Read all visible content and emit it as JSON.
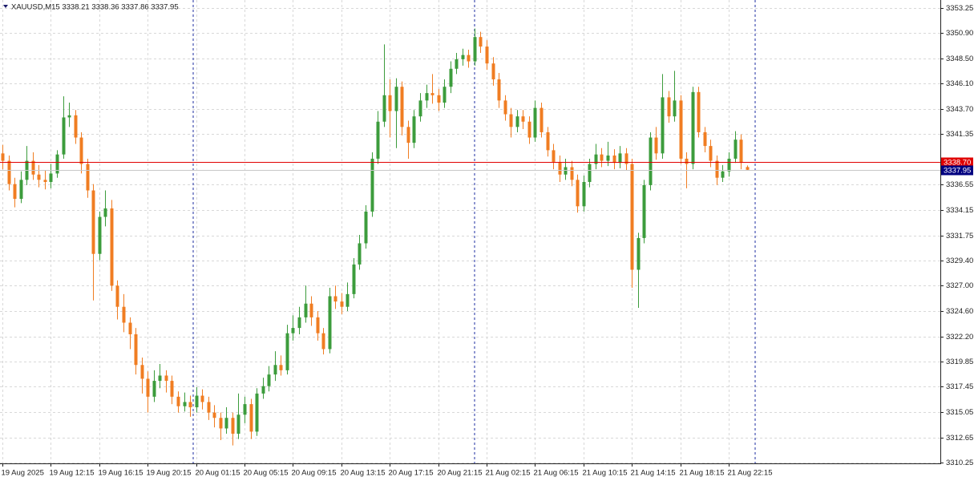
{
  "chart_data": {
    "type": "candlestick",
    "title": "XAUUSD,M15  3338.21 3338.36 3337.86 3337.95",
    "up_color": "#3c9c3c",
    "down_color": "#f07d22",
    "grid": true,
    "ylim": [
      3310.2,
      3354.0
    ],
    "yticks": [
      3353.25,
      {
        "value": 3350.9,
        "label": "3350.90"
      },
      {
        "value": 3348.5,
        "label": "3348.50"
      },
      {
        "value": 3346.1,
        "label": "3346.10"
      },
      {
        "value": 3343.7,
        "label": "3343.70"
      },
      3341.35,
      3336.55,
      3334.15,
      3331.75,
      {
        "value": 3329.4,
        "label": "3329.40"
      },
      {
        "value": 3327,
        "label": "3327.00"
      },
      {
        "value": 3324.6,
        "label": "3324.60"
      },
      {
        "value": 3322.2,
        "label": "3322.20"
      },
      3319.85,
      3317.45,
      3315.05,
      3312.65,
      3310.25
    ],
    "price_lines": [
      {
        "value": 3338.7,
        "label": "3338.70",
        "color": "#e00000"
      },
      {
        "value": 3337.95,
        "label": "3337.95",
        "color": "#000080"
      }
    ],
    "categories": [
      "19 Aug 2025",
      null,
      null,
      null,
      null,
      null,
      null,
      null,
      "19 Aug 12:15",
      null,
      null,
      null,
      null,
      null,
      null,
      null,
      "19 Aug 16:15",
      null,
      null,
      null,
      null,
      null,
      null,
      null,
      "19 Aug 20:15",
      null,
      null,
      null,
      null,
      null,
      null,
      null,
      "20 Aug 01:15",
      null,
      null,
      null,
      null,
      null,
      null,
      null,
      "20 Aug 05:15",
      null,
      null,
      null,
      null,
      null,
      null,
      null,
      "20 Aug 09:15",
      null,
      null,
      null,
      null,
      null,
      null,
      null,
      "20 Aug 13:15",
      null,
      null,
      null,
      null,
      null,
      null,
      null,
      "20 Aug 17:15",
      null,
      null,
      null,
      null,
      null,
      null,
      null,
      "20 Aug 21:15",
      null,
      null,
      null,
      null,
      null,
      null,
      null,
      "21 Aug 02:15",
      null,
      null,
      null,
      null,
      null,
      null,
      null,
      "21 Aug 06:15",
      null,
      null,
      null,
      null,
      null,
      null,
      null,
      "21 Aug 10:15",
      null,
      null,
      null,
      null,
      null,
      null,
      null,
      "21 Aug 14:15",
      null,
      null,
      null,
      null,
      null,
      null,
      null,
      "21 Aug 18:15",
      null,
      null,
      null,
      null,
      null,
      null,
      null,
      "21 Aug 22:15",
      null,
      null,
      null
    ],
    "ohlc": [
      [
        3339.5,
        3340.3,
        3338.0,
        3338.8
      ],
      [
        3338.8,
        3339.3,
        3336.0,
        3336.6
      ],
      [
        3336.6,
        3337.2,
        3334.4,
        3335.2
      ],
      [
        3335.2,
        3337.8,
        3334.8,
        3337.0
      ],
      [
        3337.0,
        3340.2,
        3336.5,
        3338.8
      ],
      [
        3338.8,
        3339.6,
        3337.0,
        3337.5
      ],
      [
        3337.5,
        3338.4,
        3336.3,
        3337.0
      ],
      [
        3337.0,
        3337.9,
        3336.1,
        3336.8
      ],
      [
        3336.8,
        3338.5,
        3336.2,
        3337.6
      ],
      [
        3337.6,
        3339.8,
        3337.2,
        3339.4
      ],
      [
        3339.4,
        3344.9,
        3339.0,
        3342.9
      ],
      [
        3342.9,
        3344.3,
        3342.0,
        3343.1
      ],
      [
        3343.1,
        3343.6,
        3340.4,
        3341.0
      ],
      [
        3341.0,
        3341.5,
        3337.6,
        3338.5
      ],
      [
        3338.5,
        3339.0,
        3335.3,
        3336.0
      ],
      [
        3336.0,
        3336.6,
        3325.6,
        3330.0
      ],
      [
        3330.0,
        3334.0,
        3329.4,
        3333.5
      ],
      [
        3333.5,
        3336.0,
        3332.6,
        3334.3
      ],
      [
        3334.3,
        3335.1,
        3326.5,
        3327.0
      ],
      [
        3327.0,
        3327.5,
        3323.8,
        3325.0
      ],
      [
        3325.0,
        3326.2,
        3322.6,
        3323.5
      ],
      [
        3323.5,
        3324.0,
        3321.0,
        3322.4
      ],
      [
        3322.4,
        3323.0,
        3318.6,
        3319.5
      ],
      [
        3319.5,
        3320.2,
        3316.8,
        3318.2
      ],
      [
        3318.2,
        3318.9,
        3315.0,
        3316.5
      ],
      [
        3316.5,
        3319.0,
        3316.0,
        3318.0
      ],
      [
        3318.0,
        3319.6,
        3317.3,
        3318.5
      ],
      [
        3318.5,
        3319.0,
        3316.9,
        3318.0
      ],
      [
        3318.0,
        3318.5,
        3315.8,
        3316.5
      ],
      [
        3316.5,
        3317.0,
        3315.0,
        3315.6
      ],
      [
        3315.6,
        3316.9,
        3315.1,
        3316.0
      ],
      [
        3316.0,
        3316.6,
        3314.6,
        3315.5
      ],
      [
        3315.5,
        3317.4,
        3315.0,
        3316.6
      ],
      [
        3316.6,
        3317.2,
        3315.3,
        3316.0
      ],
      [
        3316.0,
        3316.5,
        3314.3,
        3315.0
      ],
      [
        3315.0,
        3315.7,
        3313.6,
        3314.5
      ],
      [
        3314.5,
        3315.0,
        3312.4,
        3313.5
      ],
      [
        3313.5,
        3315.5,
        3313.0,
        3314.5
      ],
      [
        3314.5,
        3315.0,
        3311.9,
        3313.0
      ],
      [
        3313.0,
        3316.8,
        3312.5,
        3314.8
      ],
      [
        3314.8,
        3316.5,
        3314.0,
        3315.8
      ],
      [
        3315.8,
        3316.3,
        3312.5,
        3313.2
      ],
      [
        3313.2,
        3317.3,
        3312.8,
        3316.8
      ],
      [
        3316.8,
        3318.3,
        3316.3,
        3317.5
      ],
      [
        3317.5,
        3319.4,
        3317.0,
        3318.6
      ],
      [
        3318.6,
        3320.8,
        3318.0,
        3319.5
      ],
      [
        3319.5,
        3320.4,
        3318.5,
        3319.0
      ],
      [
        3319.0,
        3323.3,
        3318.6,
        3322.5
      ],
      [
        3322.5,
        3324.2,
        3321.8,
        3323.0
      ],
      [
        3323.0,
        3325.0,
        3322.4,
        3324.0
      ],
      [
        3324.0,
        3327.0,
        3323.5,
        3325.3
      ],
      [
        3325.3,
        3326.0,
        3323.2,
        3324.0
      ],
      [
        3324.0,
        3324.6,
        3321.8,
        3322.5
      ],
      [
        3322.5,
        3323.0,
        3320.5,
        3321.0
      ],
      [
        3321.0,
        3326.8,
        3320.6,
        3326.0
      ],
      [
        3326.0,
        3327.0,
        3324.8,
        3325.5
      ],
      [
        3325.5,
        3326.3,
        3324.3,
        3325.0
      ],
      [
        3325.0,
        3327.3,
        3324.6,
        3326.2
      ],
      [
        3326.2,
        3329.6,
        3325.8,
        3329.0
      ],
      [
        3329.0,
        3331.8,
        3328.5,
        3331.0
      ],
      [
        3331.0,
        3334.6,
        3330.5,
        3334.0
      ],
      [
        3334.0,
        3339.6,
        3333.5,
        3339.0
      ],
      [
        3339.0,
        3343.5,
        3338.5,
        3342.5
      ],
      [
        3342.5,
        3349.8,
        3342.0,
        3345.0
      ],
      [
        3345.0,
        3346.5,
        3341.0,
        3343.5
      ],
      [
        3343.5,
        3346.6,
        3340.0,
        3345.8
      ],
      [
        3345.8,
        3346.3,
        3341.2,
        3342.0
      ],
      [
        3342.0,
        3342.6,
        3339.0,
        3340.5
      ],
      [
        3340.5,
        3343.6,
        3340.0,
        3343.0
      ],
      [
        3343.0,
        3345.2,
        3342.5,
        3344.5
      ],
      [
        3344.5,
        3346.0,
        3343.8,
        3345.2
      ],
      [
        3345.2,
        3347.0,
        3344.2,
        3345.0
      ],
      [
        3345.0,
        3345.6,
        3343.5,
        3344.3
      ],
      [
        3344.3,
        3346.5,
        3343.8,
        3345.8
      ],
      [
        3345.8,
        3348.2,
        3345.2,
        3347.5
      ],
      [
        3347.5,
        3349.0,
        3347.0,
        3348.4
      ],
      [
        3348.4,
        3349.4,
        3347.8,
        3348.8
      ],
      [
        3348.8,
        3349.3,
        3347.6,
        3348.2
      ],
      [
        3348.2,
        3351.3,
        3347.8,
        3350.5
      ],
      [
        3350.5,
        3351.0,
        3349.0,
        3349.6
      ],
      [
        3349.6,
        3350.2,
        3347.4,
        3348.0
      ],
      [
        3348.0,
        3348.6,
        3345.9,
        3346.5
      ],
      [
        3346.5,
        3347.1,
        3343.8,
        3344.5
      ],
      [
        3344.5,
        3345.0,
        3342.6,
        3343.2
      ],
      [
        3343.2,
        3343.8,
        3341.0,
        3342.0
      ],
      [
        3342.0,
        3343.6,
        3341.5,
        3343.0
      ],
      [
        3343.0,
        3343.6,
        3341.8,
        3342.5
      ],
      [
        3342.5,
        3343.0,
        3340.4,
        3341.0
      ],
      [
        3341.0,
        3344.5,
        3340.6,
        3343.8
      ],
      [
        3343.8,
        3344.3,
        3341.0,
        3341.5
      ],
      [
        3341.5,
        3342.0,
        3339.2,
        3339.8
      ],
      [
        3339.8,
        3340.4,
        3338.0,
        3338.7
      ],
      [
        3338.7,
        3339.3,
        3336.8,
        3337.5
      ],
      [
        3337.5,
        3339.0,
        3337.0,
        3338.2
      ],
      [
        3338.2,
        3338.8,
        3336.4,
        3337.0
      ],
      [
        3337.0,
        3337.5,
        3333.9,
        3334.5
      ],
      [
        3334.5,
        3337.4,
        3334.0,
        3336.8
      ],
      [
        3336.8,
        3339.0,
        3336.3,
        3338.5
      ],
      [
        3338.5,
        3340.4,
        3338.0,
        3339.4
      ],
      [
        3339.4,
        3340.0,
        3338.2,
        3338.8
      ],
      [
        3338.8,
        3340.6,
        3338.3,
        3339.3
      ],
      [
        3339.3,
        3339.9,
        3338.0,
        3338.6
      ],
      [
        3338.6,
        3340.2,
        3338.1,
        3339.5
      ],
      [
        3339.5,
        3340.0,
        3337.9,
        3338.5
      ],
      [
        3338.5,
        3339.0,
        3326.8,
        3328.5
      ],
      [
        3328.5,
        3332.0,
        3324.9,
        3331.5
      ],
      [
        3331.5,
        3337.0,
        3331.0,
        3336.5
      ],
      [
        3336.5,
        3341.5,
        3336.0,
        3341.0
      ],
      [
        3341.0,
        3342.0,
        3338.9,
        3339.5
      ],
      [
        3339.5,
        3347.0,
        3339.0,
        3344.8
      ],
      [
        3344.8,
        3345.4,
        3342.4,
        3343.0
      ],
      [
        3343.0,
        3347.3,
        3342.5,
        3344.5
      ],
      [
        3344.5,
        3345.0,
        3338.5,
        3339.0
      ],
      [
        3339.0,
        3339.6,
        3336.2,
        3338.5
      ],
      [
        3338.5,
        3345.8,
        3338.0,
        3345.3
      ],
      [
        3345.3,
        3345.8,
        3341.0,
        3341.5
      ],
      [
        3341.5,
        3342.0,
        3339.6,
        3340.2
      ],
      [
        3340.2,
        3340.8,
        3338.2,
        3338.8
      ],
      [
        3338.8,
        3339.3,
        3336.5,
        3337.2
      ],
      [
        3337.2,
        3338.4,
        3336.8,
        3337.8
      ],
      [
        3337.8,
        3339.6,
        3337.3,
        3339.0
      ],
      [
        3339.0,
        3341.6,
        3338.6,
        3340.8
      ],
      [
        3340.8,
        3341.3,
        3338.0,
        3338.6
      ],
      [
        3338.21,
        3338.36,
        3337.86,
        3337.95
      ]
    ]
  }
}
